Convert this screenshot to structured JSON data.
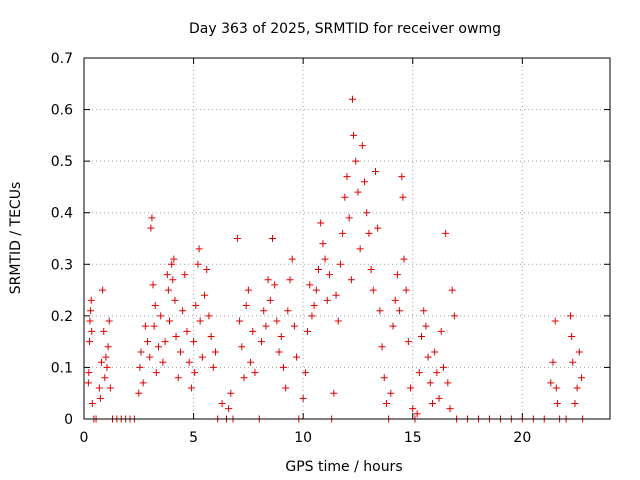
{
  "chart_data": {
    "type": "scatter",
    "title": "Day 363 of 2025, SRMTID for receiver owmg",
    "xlabel": "GPS time / hours",
    "ylabel": "SRMTID / TECUs",
    "xlim": [
      0,
      24
    ],
    "ylim": [
      0,
      0.7
    ],
    "xticks": [
      0,
      5,
      10,
      15,
      20
    ],
    "yticks": [
      0,
      0.1,
      0.2,
      0.3,
      0.4,
      0.5,
      0.6,
      0.7
    ],
    "xtick_labels": [
      "0",
      "5",
      "10",
      "15",
      "20"
    ],
    "ytick_labels": [
      "0",
      "0.1",
      "0.2",
      "0.3",
      "0.4",
      "0.5",
      "0.6",
      "0.7"
    ],
    "grid": true,
    "marker": "+",
    "series": [
      {
        "name": "SRMTID",
        "color": "#e00000",
        "points": [
          [
            0.2,
            0.07
          ],
          [
            0.22,
            0.09
          ],
          [
            0.25,
            0.15
          ],
          [
            0.27,
            0.19
          ],
          [
            0.3,
            0.21
          ],
          [
            0.33,
            0.23
          ],
          [
            0.35,
            0.17
          ],
          [
            0.38,
            0.03
          ],
          [
            0.45,
            0.0
          ],
          [
            0.55,
            0.0
          ],
          [
            0.7,
            0.06
          ],
          [
            0.75,
            0.04
          ],
          [
            0.8,
            0.11
          ],
          [
            0.85,
            0.25
          ],
          [
            0.9,
            0.17
          ],
          [
            0.95,
            0.08
          ],
          [
            1.0,
            0.12
          ],
          [
            1.05,
            0.1
          ],
          [
            1.1,
            0.14
          ],
          [
            1.15,
            0.19
          ],
          [
            1.2,
            0.06
          ],
          [
            1.3,
            0.0
          ],
          [
            1.5,
            0.0
          ],
          [
            1.7,
            0.0
          ],
          [
            1.9,
            0.0
          ],
          [
            2.1,
            0.0
          ],
          [
            2.3,
            0.0
          ],
          [
            2.5,
            0.05
          ],
          [
            2.55,
            0.1
          ],
          [
            2.6,
            0.13
          ],
          [
            2.7,
            0.07
          ],
          [
            2.8,
            0.18
          ],
          [
            2.9,
            0.15
          ],
          [
            3.0,
            0.12
          ],
          [
            3.05,
            0.37
          ],
          [
            3.1,
            0.39
          ],
          [
            3.15,
            0.26
          ],
          [
            3.2,
            0.18
          ],
          [
            3.25,
            0.22
          ],
          [
            3.3,
            0.09
          ],
          [
            3.4,
            0.14
          ],
          [
            3.5,
            0.2
          ],
          [
            3.6,
            0.11
          ],
          [
            3.7,
            0.15
          ],
          [
            3.8,
            0.28
          ],
          [
            3.85,
            0.25
          ],
          [
            3.9,
            0.19
          ],
          [
            4.0,
            0.3
          ],
          [
            4.05,
            0.27
          ],
          [
            4.1,
            0.31
          ],
          [
            4.15,
            0.23
          ],
          [
            4.2,
            0.16
          ],
          [
            4.3,
            0.08
          ],
          [
            4.4,
            0.13
          ],
          [
            4.5,
            0.21
          ],
          [
            4.6,
            0.28
          ],
          [
            4.7,
            0.17
          ],
          [
            4.8,
            0.11
          ],
          [
            4.9,
            0.06
          ],
          [
            5.0,
            0.15
          ],
          [
            5.05,
            0.09
          ],
          [
            5.1,
            0.22
          ],
          [
            5.2,
            0.3
          ],
          [
            5.25,
            0.33
          ],
          [
            5.3,
            0.19
          ],
          [
            5.4,
            0.12
          ],
          [
            5.5,
            0.24
          ],
          [
            5.6,
            0.29
          ],
          [
            5.7,
            0.2
          ],
          [
            5.8,
            0.16
          ],
          [
            5.9,
            0.1
          ],
          [
            6.0,
            0.13
          ],
          [
            6.1,
            0.0
          ],
          [
            6.3,
            0.03
          ],
          [
            6.5,
            0.0
          ],
          [
            6.6,
            0.02
          ],
          [
            6.7,
            0.05
          ],
          [
            6.8,
            0.0
          ],
          [
            7.0,
            0.35
          ],
          [
            7.1,
            0.19
          ],
          [
            7.2,
            0.14
          ],
          [
            7.3,
            0.08
          ],
          [
            7.4,
            0.22
          ],
          [
            7.5,
            0.25
          ],
          [
            7.6,
            0.11
          ],
          [
            7.7,
            0.17
          ],
          [
            7.8,
            0.09
          ],
          [
            8.0,
            0.0
          ],
          [
            8.1,
            0.15
          ],
          [
            8.2,
            0.21
          ],
          [
            8.3,
            0.18
          ],
          [
            8.4,
            0.27
          ],
          [
            8.5,
            0.23
          ],
          [
            8.6,
            0.35
          ],
          [
            8.7,
            0.26
          ],
          [
            8.8,
            0.19
          ],
          [
            8.9,
            0.13
          ],
          [
            9.0,
            0.16
          ],
          [
            9.1,
            0.1
          ],
          [
            9.2,
            0.06
          ],
          [
            9.3,
            0.21
          ],
          [
            9.4,
            0.27
          ],
          [
            9.5,
            0.31
          ],
          [
            9.6,
            0.18
          ],
          [
            9.7,
            0.12
          ],
          [
            9.8,
            0.0
          ],
          [
            10.0,
            0.04
          ],
          [
            10.1,
            0.09
          ],
          [
            10.2,
            0.17
          ],
          [
            10.3,
            0.26
          ],
          [
            10.4,
            0.2
          ],
          [
            10.5,
            0.22
          ],
          [
            10.6,
            0.25
          ],
          [
            10.7,
            0.29
          ],
          [
            10.8,
            0.38
          ],
          [
            10.9,
            0.34
          ],
          [
            11.0,
            0.31
          ],
          [
            11.1,
            0.23
          ],
          [
            11.2,
            0.28
          ],
          [
            11.3,
            0.0
          ],
          [
            11.4,
            0.05
          ],
          [
            11.5,
            0.24
          ],
          [
            11.6,
            0.19
          ],
          [
            11.7,
            0.3
          ],
          [
            11.8,
            0.36
          ],
          [
            11.9,
            0.43
          ],
          [
            12.0,
            0.47
          ],
          [
            12.1,
            0.39
          ],
          [
            12.2,
            0.27
          ],
          [
            12.25,
            0.62
          ],
          [
            12.3,
            0.55
          ],
          [
            12.4,
            0.5
          ],
          [
            12.5,
            0.44
          ],
          [
            12.6,
            0.33
          ],
          [
            12.7,
            0.53
          ],
          [
            12.8,
            0.46
          ],
          [
            12.9,
            0.4
          ],
          [
            13.0,
            0.36
          ],
          [
            13.1,
            0.29
          ],
          [
            13.2,
            0.25
          ],
          [
            13.3,
            0.48
          ],
          [
            13.4,
            0.37
          ],
          [
            13.5,
            0.21
          ],
          [
            13.6,
            0.14
          ],
          [
            13.7,
            0.08
          ],
          [
            13.8,
            0.03
          ],
          [
            13.9,
            0.0
          ],
          [
            14.0,
            0.05
          ],
          [
            14.1,
            0.18
          ],
          [
            14.2,
            0.23
          ],
          [
            14.3,
            0.28
          ],
          [
            14.4,
            0.21
          ],
          [
            14.5,
            0.47
          ],
          [
            14.55,
            0.43
          ],
          [
            14.6,
            0.31
          ],
          [
            14.7,
            0.25
          ],
          [
            14.8,
            0.15
          ],
          [
            14.9,
            0.06
          ],
          [
            15.0,
            0.02
          ],
          [
            15.1,
            0.0
          ],
          [
            15.2,
            0.01
          ],
          [
            15.3,
            0.09
          ],
          [
            15.4,
            0.16
          ],
          [
            15.5,
            0.21
          ],
          [
            15.6,
            0.18
          ],
          [
            15.7,
            0.12
          ],
          [
            15.8,
            0.07
          ],
          [
            15.9,
            0.03
          ],
          [
            16.0,
            0.13
          ],
          [
            16.1,
            0.09
          ],
          [
            16.2,
            0.04
          ],
          [
            16.3,
            0.17
          ],
          [
            16.4,
            0.1
          ],
          [
            16.5,
            0.36
          ],
          [
            16.6,
            0.07
          ],
          [
            16.7,
            0.02
          ],
          [
            16.8,
            0.25
          ],
          [
            16.9,
            0.2
          ],
          [
            17.0,
            0.0
          ],
          [
            17.5,
            0.0
          ],
          [
            18.0,
            0.0
          ],
          [
            18.5,
            0.0
          ],
          [
            19.0,
            0.0
          ],
          [
            19.5,
            0.0
          ],
          [
            20.0,
            0.0
          ],
          [
            20.5,
            0.0
          ],
          [
            21.0,
            0.0
          ],
          [
            21.3,
            0.07
          ],
          [
            21.4,
            0.11
          ],
          [
            21.5,
            0.19
          ],
          [
            21.55,
            0.06
          ],
          [
            21.6,
            0.03
          ],
          [
            21.7,
            0.0
          ],
          [
            22.0,
            0.0
          ],
          [
            22.2,
            0.2
          ],
          [
            22.25,
            0.16
          ],
          [
            22.3,
            0.11
          ],
          [
            22.4,
            0.03
          ],
          [
            22.5,
            0.06
          ],
          [
            22.6,
            0.13
          ],
          [
            22.7,
            0.08
          ],
          [
            22.75,
            0.0
          ]
        ]
      }
    ]
  }
}
